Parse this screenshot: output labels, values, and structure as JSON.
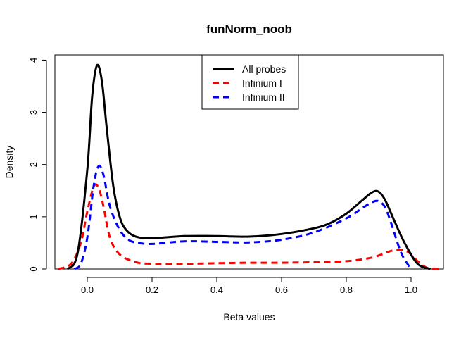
{
  "chart_data": {
    "type": "line",
    "title": "funNorm_noob",
    "xlabel": "Beta values",
    "ylabel": "Density",
    "xlim": [
      -0.1,
      1.1
    ],
    "ylim": [
      0,
      4.1
    ],
    "xticks": [
      "0.0",
      "0.2",
      "0.4",
      "0.6",
      "0.8",
      "1.0"
    ],
    "yticks": [
      "0",
      "1",
      "2",
      "3",
      "4"
    ],
    "legend_position": "top-center",
    "grid": false,
    "series": [
      {
        "name": "All probes",
        "color": "#000000",
        "dash": "solid",
        "x": [
          -0.06,
          -0.03,
          0.0,
          0.015,
          0.03,
          0.045,
          0.06,
          0.08,
          0.1,
          0.12,
          0.15,
          0.2,
          0.3,
          0.4,
          0.5,
          0.6,
          0.7,
          0.75,
          0.8,
          0.85,
          0.88,
          0.9,
          0.92,
          0.95,
          0.98,
          1.02,
          1.06
        ],
        "y": [
          0,
          0.3,
          1.9,
          3.3,
          3.9,
          3.6,
          2.7,
          1.6,
          1.0,
          0.75,
          0.62,
          0.59,
          0.63,
          0.63,
          0.62,
          0.67,
          0.78,
          0.88,
          1.06,
          1.32,
          1.47,
          1.48,
          1.32,
          0.9,
          0.5,
          0.1,
          0
        ]
      },
      {
        "name": "Infinium I",
        "color": "#ff0000",
        "dash": "dashed",
        "x": [
          -0.09,
          -0.05,
          -0.02,
          0.0,
          0.02,
          0.035,
          0.05,
          0.07,
          0.1,
          0.15,
          0.2,
          0.3,
          0.4,
          0.5,
          0.6,
          0.7,
          0.8,
          0.88,
          0.93,
          0.96,
          0.99,
          1.02,
          1.05,
          1.09
        ],
        "y": [
          0,
          0.1,
          0.5,
          1.1,
          1.58,
          1.55,
          1.2,
          0.6,
          0.28,
          0.13,
          0.1,
          0.1,
          0.11,
          0.12,
          0.12,
          0.13,
          0.15,
          0.22,
          0.33,
          0.37,
          0.33,
          0.15,
          0.02,
          0
        ]
      },
      {
        "name": "Infinium II",
        "color": "#0000ff",
        "dash": "dashed",
        "x": [
          -0.04,
          -0.02,
          0.0,
          0.02,
          0.035,
          0.05,
          0.07,
          0.1,
          0.13,
          0.16,
          0.2,
          0.3,
          0.4,
          0.5,
          0.6,
          0.7,
          0.8,
          0.85,
          0.88,
          0.9,
          0.92,
          0.94,
          0.97,
          1.0
        ],
        "y": [
          0,
          0.1,
          0.6,
          1.6,
          1.97,
          1.8,
          1.2,
          0.75,
          0.55,
          0.5,
          0.48,
          0.53,
          0.52,
          0.51,
          0.56,
          0.7,
          0.97,
          1.17,
          1.28,
          1.3,
          1.18,
          0.85,
          0.3,
          0
        ]
      }
    ]
  }
}
